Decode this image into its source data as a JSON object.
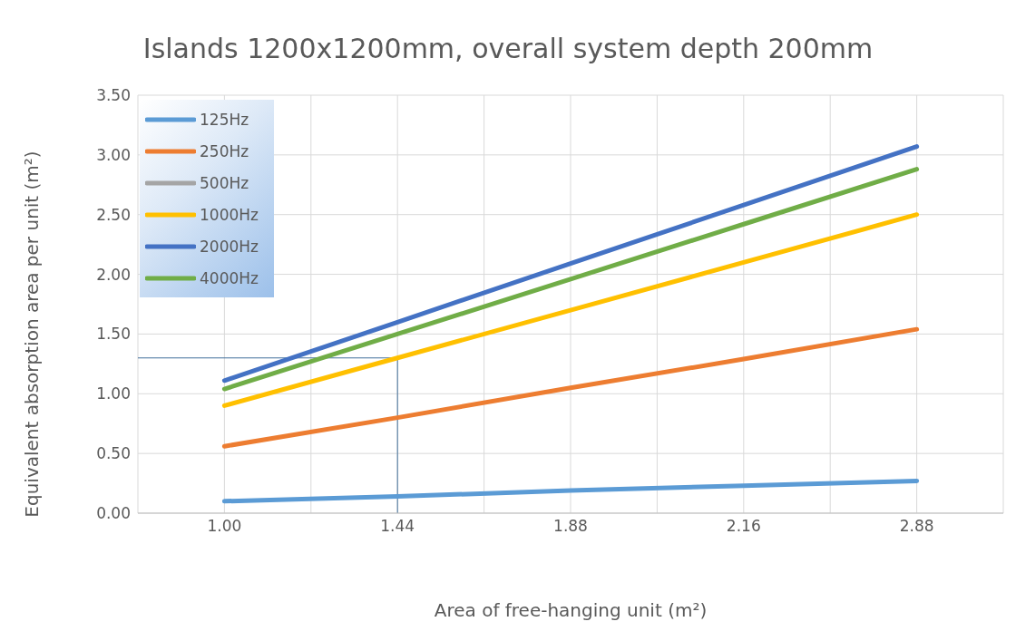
{
  "chart_data": {
    "type": "line",
    "title": "Islands 1200x1200mm, overall system depth 200mm",
    "xlabel": "Area of free-hanging unit (m²)",
    "ylabel": "Equivalent absorption area per unit (m²)",
    "categories": [
      "1.00",
      "1.44",
      "1.88",
      "2.16",
      "2.88"
    ],
    "series": [
      {
        "name": "125Hz",
        "color": "#5b9bd5",
        "values": [
          0.1,
          0.14,
          0.19,
          0.23,
          0.27
        ]
      },
      {
        "name": "250Hz",
        "color": "#ed7d31",
        "values": [
          0.56,
          0.8,
          1.05,
          1.29,
          1.54
        ]
      },
      {
        "name": "500Hz",
        "color": "#a5a5a5",
        "values": [
          null,
          null,
          null,
          null,
          null
        ]
      },
      {
        "name": "1000Hz",
        "color": "#ffc000",
        "values": [
          0.9,
          1.3,
          1.7,
          2.1,
          2.5
        ]
      },
      {
        "name": "2000Hz",
        "color": "#4472c4",
        "values": [
          1.11,
          1.6,
          2.09,
          2.58,
          3.07
        ]
      },
      {
        "name": "4000Hz",
        "color": "#70ad47",
        "values": [
          1.04,
          1.5,
          1.96,
          2.42,
          2.88
        ]
      }
    ],
    "ylim": [
      0,
      3.5
    ],
    "yticks": [
      {
        "value": 0,
        "label": "0.00"
      },
      {
        "value": 0.5,
        "label": "0.50"
      },
      {
        "value": 1,
        "label": "1.00"
      },
      {
        "value": 1.5,
        "label": "1.50"
      },
      {
        "value": 2,
        "label": "2.00"
      },
      {
        "value": 2.5,
        "label": "2.50"
      },
      {
        "value": 3,
        "label": "3.00"
      },
      {
        "value": 3.5,
        "label": "3.50"
      }
    ],
    "ref_lines": [
      {
        "axis": "x",
        "value": "1.44",
        "color": "#44719c"
      },
      {
        "axis": "y",
        "value": 1.3,
        "color": "#44719c"
      }
    ],
    "grid": true,
    "legend": "top left",
    "marker": "none",
    "line_style": "solid"
  }
}
